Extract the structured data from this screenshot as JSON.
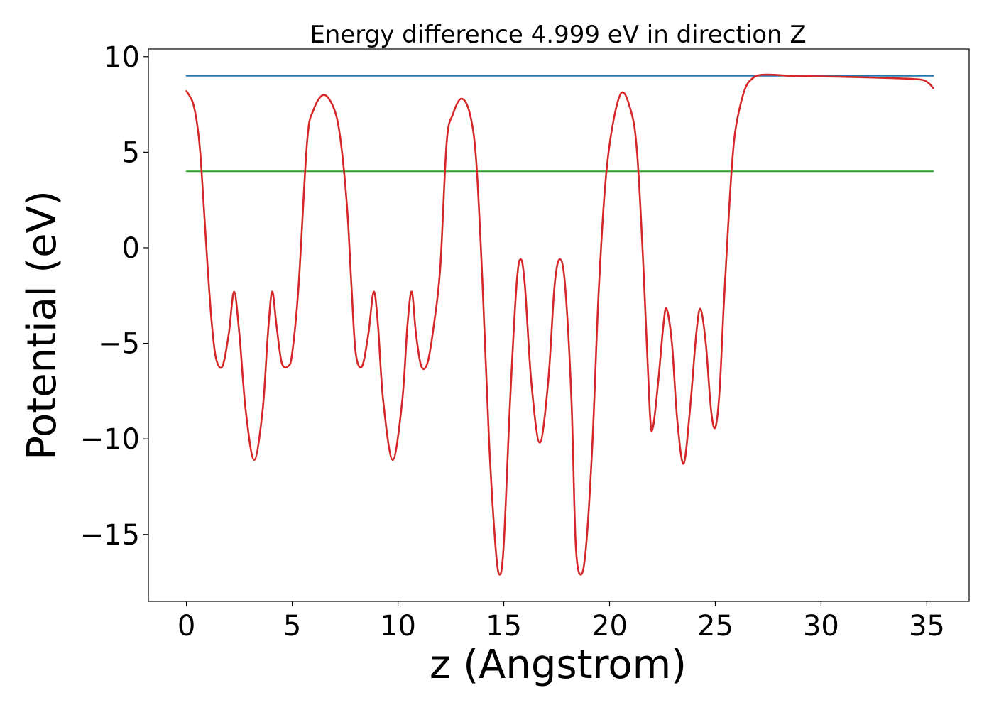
{
  "chart_data": {
    "type": "line",
    "title": "Energy difference 4.999 eV in direction Z",
    "xlabel": "z (Angstrom)",
    "ylabel": "Potential (eV)",
    "xlim": [
      -1.8,
      37.0
    ],
    "ylim": [
      -18.5,
      10.4
    ],
    "xticks": [
      0,
      5,
      10,
      15,
      20,
      25,
      30,
      35
    ],
    "xtick_labels": [
      "0",
      "5",
      "10",
      "15",
      "20",
      "25",
      "30",
      "35"
    ],
    "yticks": [
      10,
      5,
      0,
      -5,
      -10,
      -15
    ],
    "ytick_labels": [
      "10",
      "5",
      "0",
      "−5",
      "−10",
      "−15"
    ],
    "grid": false,
    "legend": "none",
    "series": [
      {
        "color": "#d62728",
        "style": "potential",
        "x": [
          0,
          0.3,
          0.5,
          0.65,
          0.8,
          1.0,
          1.2,
          1.4,
          1.7,
          2.0,
          2.25,
          2.5,
          2.8,
          3.2,
          3.6,
          3.85,
          4.05,
          4.25,
          4.5,
          4.8,
          5.0,
          5.3,
          5.7,
          6.0,
          6.5,
          7.0,
          7.3,
          7.6,
          7.8,
          8.0,
          8.3,
          8.6,
          8.85,
          9.05,
          9.3,
          9.75,
          10.2,
          10.45,
          10.65,
          10.85,
          11.1,
          11.4,
          11.7,
          12.0,
          12.3,
          12.6,
          13.0,
          13.4,
          13.7,
          14.0,
          14.3,
          14.6,
          14.8,
          15.0,
          15.3,
          15.6,
          15.8,
          16.0,
          16.3,
          16.7,
          17.1,
          17.4,
          17.65,
          17.9,
          18.2,
          18.4,
          18.65,
          18.9,
          19.2,
          19.5,
          19.9,
          20.5,
          21.0,
          21.3,
          21.6,
          21.9,
          22.05,
          22.3,
          22.55,
          22.7,
          22.95,
          23.2,
          23.5,
          23.8,
          24.1,
          24.3,
          24.55,
          24.8,
          25.0,
          25.2,
          25.4,
          25.6,
          25.8,
          26.0,
          26.4,
          26.8,
          27.2,
          27.8,
          28.5,
          30.0,
          32.0,
          34.0,
          34.8,
          35.1,
          35.3
        ],
        "y": [
          8.2,
          7.6,
          6.5,
          5.0,
          2.5,
          -1.0,
          -4.0,
          -5.8,
          -6.2,
          -4.5,
          -2.3,
          -4.5,
          -8.5,
          -11.1,
          -8.5,
          -4.5,
          -2.3,
          -4.0,
          -6.0,
          -6.2,
          -5.5,
          -2.0,
          5.5,
          7.2,
          8.0,
          7.2,
          5.5,
          2.0,
          -2.0,
          -5.5,
          -6.2,
          -4.5,
          -2.3,
          -4.0,
          -8.0,
          -11.1,
          -8.0,
          -4.0,
          -2.3,
          -4.5,
          -6.2,
          -6.0,
          -4.0,
          -1.0,
          5.5,
          7.0,
          7.8,
          7.0,
          4.5,
          -2.0,
          -10.0,
          -15.5,
          -17.1,
          -15.5,
          -8.0,
          -2.0,
          -0.6,
          -2.0,
          -7.0,
          -10.2,
          -7.0,
          -2.0,
          -0.6,
          -2.0,
          -8.0,
          -15.5,
          -17.1,
          -15.5,
          -10.0,
          -2.0,
          4.5,
          8.0,
          7.2,
          5.0,
          -1.0,
          -8.5,
          -9.4,
          -7.0,
          -4.0,
          -3.2,
          -5.0,
          -9.0,
          -11.3,
          -8.5,
          -4.5,
          -3.2,
          -5.0,
          -8.5,
          -9.4,
          -7.5,
          -3.0,
          1.0,
          4.5,
          6.5,
          8.3,
          8.9,
          9.05,
          9.05,
          9.0,
          8.97,
          8.92,
          8.85,
          8.78,
          8.6,
          8.35
        ]
      },
      {
        "color": "#1f77b4",
        "style": "level",
        "x": [
          0,
          35.3
        ],
        "y": [
          9.0,
          9.0
        ]
      },
      {
        "color": "#2ca02c",
        "style": "level",
        "x": [
          0,
          35.3
        ],
        "y": [
          4.0,
          4.0
        ]
      }
    ]
  }
}
